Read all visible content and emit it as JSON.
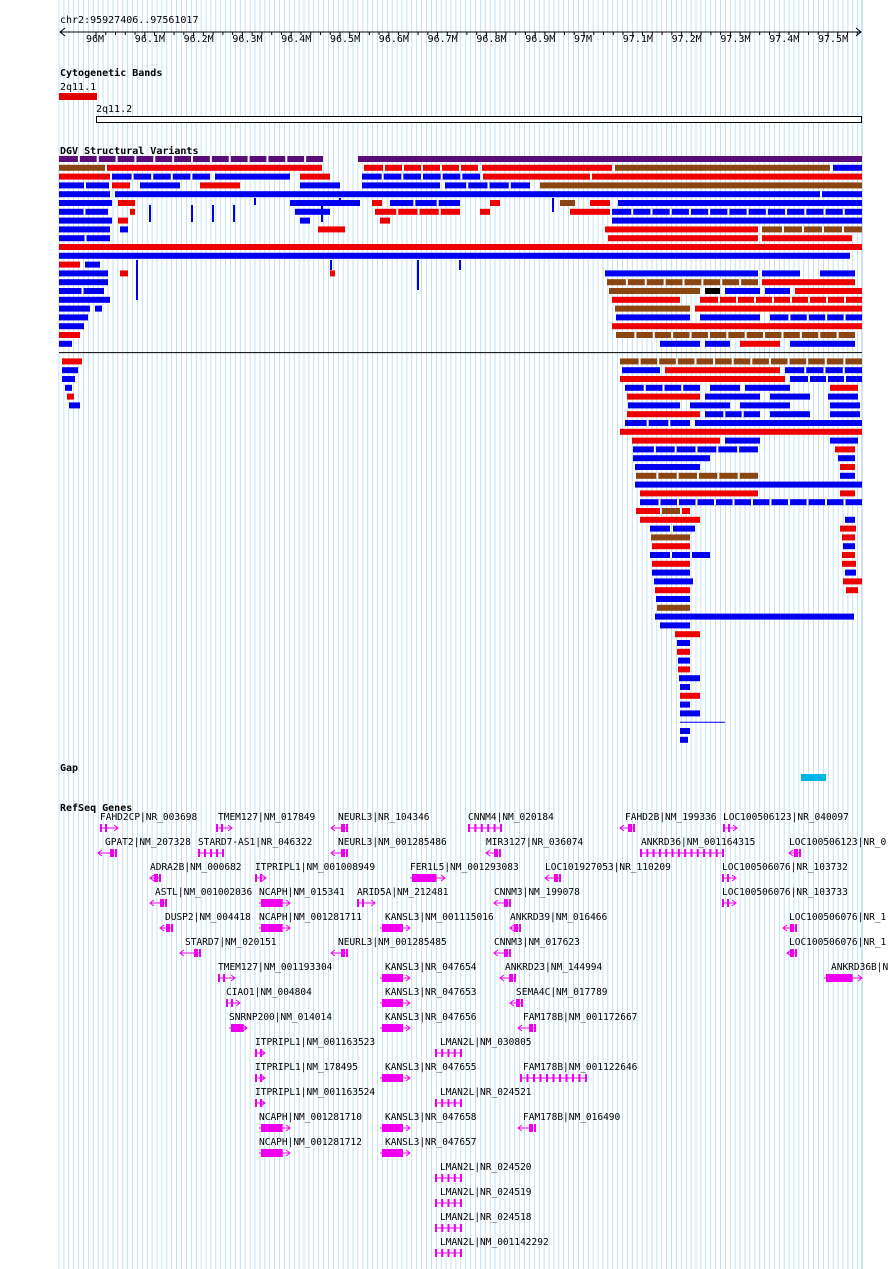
{
  "browser": {
    "region": "chr2:95927406..97561017",
    "tracks": {
      "cytoband": "Cytogenetic Bands",
      "dgv": "DGV Structural Variants",
      "gap": "Gap",
      "refseq": "RefSeq Genes"
    }
  },
  "ruler": {
    "ticks": [
      "96M",
      "96.1M",
      "96.2M",
      "96.3M",
      "96.4M",
      "96.5M",
      "96.6M",
      "96.7M",
      "96.8M",
      "96.9M",
      "97M",
      "97.1M",
      "97.2M",
      "97.3M",
      "97.4M",
      "97.5M"
    ]
  },
  "cytobands": [
    {
      "name": "2q11.1",
      "color": "#e00000"
    },
    {
      "name": "2q11.2",
      "color": "#ffffff"
    }
  ],
  "colors": {
    "gain": "#0000ee",
    "loss": "#ee0000",
    "both": "#8b4513",
    "inversion": "#000000",
    "dgv_top": "#5a0d7a",
    "gap": "#00b4e6",
    "gene": "#ee00ee",
    "grid": "#b4dcf0"
  },
  "genes": [
    "FAHD2CP|NR_003698",
    "TMEM127|NM_017849",
    "NEURL3|NR_104346",
    "CNNM4|NM_020184",
    "FAHD2B|NM_199336",
    "LOC100506123|NR_040097",
    "GPAT2|NM_207328",
    "STARD7-AS1|NR_046322",
    "NEURL3|NM_001285486",
    "MIR3127|NR_036074",
    "ANKRD36|NM_001164315",
    "LOC100506123|NR_0",
    "ADRA2B|NM_000682",
    "ITPRIPL1|NM_001008949",
    "FER1L5|NM_001293083",
    "LOC101927053|NR_110209",
    "LOC100506076|NR_103732",
    "ASTL|NM_001002036",
    "NCAPH|NM_015341",
    "ARID5A|NM_212481",
    "CNNM3|NM_199078",
    "LOC100506076|NR_103733",
    "DUSP2|NM_004418",
    "NCAPH|NM_001281711",
    "KANSL3|NM_001115016",
    "ANKRD39|NM_016466",
    "LOC100506076|NR_1",
    "STARD7|NM_020151",
    "NEURL3|NM_001285485",
    "CNNM3|NM_017623",
    "LOC100506076|NR_1",
    "TMEM127|NM_001193304",
    "KANSL3|NR_047654",
    "ANKRD23|NM_144994",
    "ANKRD36B|N",
    "CIAO1|NM_004804",
    "KANSL3|NR_047653",
    "SEMA4C|NM_017789",
    "SNRNP200|NM_014014",
    "KANSL3|NR_047656",
    "FAM178B|NM_001172667",
    "ITPRIPL1|NM_001163523",
    "LMAN2L|NM_030805",
    "ITPRIPL1|NM_178495",
    "KANSL3|NR_047655",
    "FAM178B|NM_001122646",
    "ITPRIPL1|NM_001163524",
    "LMAN2L|NR_024521",
    "NCAPH|NM_001281710",
    "KANSL3|NR_047658",
    "FAM178B|NM_016490",
    "NCAPH|NM_001281712",
    "KANSL3|NR_047657",
    "LMAN2L|NR_024520",
    "LMAN2L|NR_024519",
    "LMAN2L|NR_024518",
    "LMAN2L|NM_001142292"
  ]
}
